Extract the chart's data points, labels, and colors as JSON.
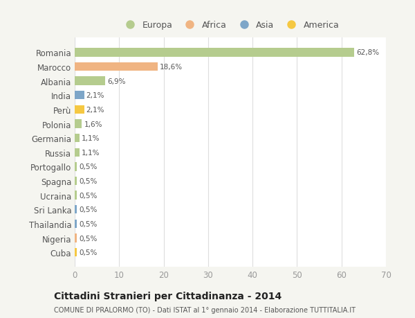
{
  "countries": [
    "Romania",
    "Marocco",
    "Albania",
    "India",
    "Perù",
    "Polonia",
    "Germania",
    "Russia",
    "Portogallo",
    "Spagna",
    "Ucraina",
    "Sri Lanka",
    "Thailandia",
    "Nigeria",
    "Cuba"
  ],
  "values": [
    62.8,
    18.6,
    6.9,
    2.1,
    2.1,
    1.6,
    1.1,
    1.1,
    0.5,
    0.5,
    0.5,
    0.5,
    0.5,
    0.5,
    0.5
  ],
  "labels": [
    "62,8%",
    "18,6%",
    "6,9%",
    "2,1%",
    "2,1%",
    "1,6%",
    "1,1%",
    "1,1%",
    "0,5%",
    "0,5%",
    "0,5%",
    "0,5%",
    "0,5%",
    "0,5%",
    "0,5%"
  ],
  "bar_colors": [
    "#b5cc8e",
    "#f0b482",
    "#b5cc8e",
    "#7ea6c8",
    "#f5c842",
    "#b5cc8e",
    "#b5cc8e",
    "#b5cc8e",
    "#b5cc8e",
    "#b5cc8e",
    "#b5cc8e",
    "#7ea6c8",
    "#7ea6c8",
    "#f0b482",
    "#f5c842"
  ],
  "continent_colors": {
    "Europa": "#b5cc8e",
    "Africa": "#f0b482",
    "Asia": "#7ea6c8",
    "America": "#f5c842"
  },
  "xlim": [
    0,
    70
  ],
  "xticks": [
    0,
    10,
    20,
    30,
    40,
    50,
    60,
    70
  ],
  "title": "Cittadini Stranieri per Cittadinanza - 2014",
  "subtitle": "COMUNE DI PRALORMO (TO) - Dati ISTAT al 1° gennaio 2014 - Elaborazione TUTTITALIA.IT",
  "background_color": "#f5f5f0",
  "bar_background_color": "#ffffff",
  "grid_color": "#dddddd"
}
